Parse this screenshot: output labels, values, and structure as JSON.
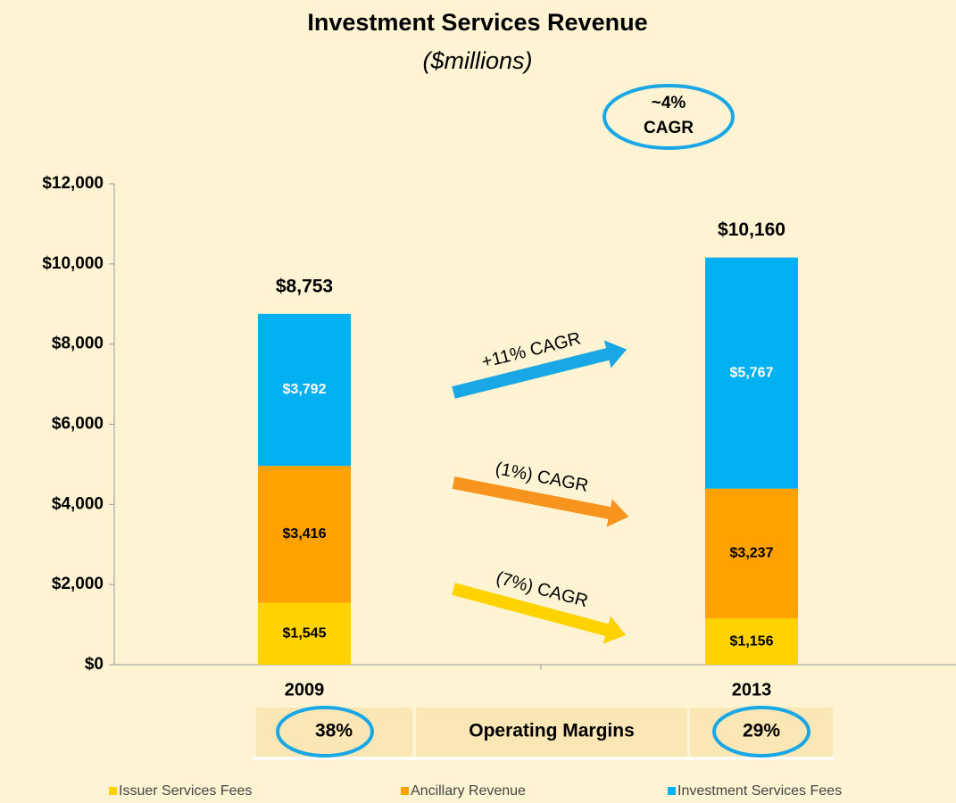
{
  "chart_data": {
    "type": "bar",
    "stacked": true,
    "title": "Investment Services Revenue",
    "subtitle": "($millions)",
    "categories": [
      "2009",
      "2013"
    ],
    "series": [
      {
        "name": "Issuer Services Fees",
        "color": "#ffd200",
        "values": [
          1545,
          1156
        ],
        "value_labels": [
          "$1,545",
          "$1,156"
        ],
        "label_color": "#000000"
      },
      {
        "name": "Ancillary Revenue",
        "color": "#ffa200",
        "values": [
          3416,
          3237
        ],
        "value_labels": [
          "$3,416",
          "$3,237"
        ],
        "label_color": "#000000"
      },
      {
        "name": "Investment Services Fees",
        "color": "#00b0f0",
        "values": [
          3792,
          5767
        ],
        "value_labels": [
          "$3,792",
          "$5,767"
        ],
        "label_color": "#ffffff"
      }
    ],
    "totals": [
      8753,
      10160
    ],
    "total_labels": [
      "$8,753",
      "$10,160"
    ],
    "ylim": [
      0,
      12000
    ],
    "yticks": [
      {
        "value": 0,
        "label": "$0"
      },
      {
        "value": 2000,
        "label": "$2,000"
      },
      {
        "value": 4000,
        "label": "$4,000"
      },
      {
        "value": 6000,
        "label": "$6,000"
      },
      {
        "value": 8000,
        "label": "$8,000"
      },
      {
        "value": 10000,
        "label": "$10,000"
      },
      {
        "value": 12000,
        "label": "$12,000"
      }
    ],
    "grid": false,
    "legend": "bottom",
    "annotations": {
      "overall_cagr": [
        "~4%",
        "CAGR"
      ],
      "arrows": [
        {
          "text": "+11% CAGR",
          "color": "#1aa7e6"
        },
        {
          "text": "(1%) CAGR",
          "color": "#f7941d"
        },
        {
          "text": "(7%) CAGR",
          "color": "#ffd200"
        }
      ]
    },
    "operating_margins": {
      "label": "Operating Margins",
      "values": [
        38,
        29
      ],
      "value_labels": [
        "38%",
        "29%"
      ]
    }
  }
}
